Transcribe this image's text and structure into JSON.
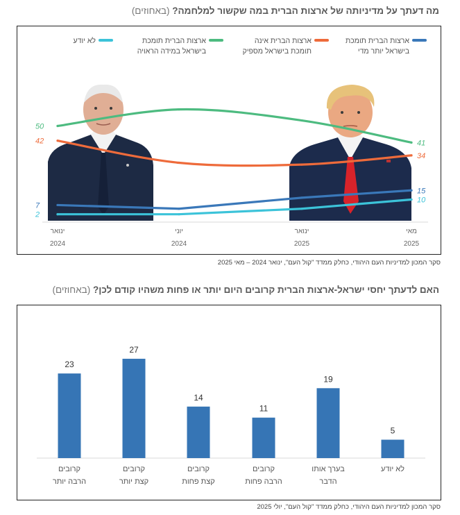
{
  "chart_data": [
    {
      "type": "line",
      "title": "מה דעתך על מדיניותה של ארצות הברית במה שקשור למלחמה?",
      "title_unit": "(באחוזים)",
      "x": [
        {
          "line1": "ינואר",
          "line2": "2024"
        },
        {
          "line1": "יוני",
          "line2": "2024"
        },
        {
          "line1": "ינואר",
          "line2": "2025"
        },
        {
          "line1": "מאי",
          "line2": "2025"
        }
      ],
      "series": [
        {
          "name": "ארצות הברית תומכת בישראל יותר מדי",
          "color": "#3a78b9",
          "start_label": "7",
          "end_label": "15",
          "values": [
            7,
            5,
            11,
            15
          ]
        },
        {
          "name": "ארצות הברית אינה תומכת בישראל מספיק",
          "color": "#ee6b3b",
          "start_label": "42",
          "end_label": "34",
          "values": [
            42,
            30,
            29,
            34
          ]
        },
        {
          "name": "ארצות הברית תומכת בישראל במידה הראויה",
          "color": "#4dbb80",
          "start_label": "50",
          "end_label": "41",
          "values": [
            50,
            59,
            53,
            41
          ]
        },
        {
          "name": "לא יודע",
          "color": "#3cc3d9",
          "start_label": "2",
          "end_label": "10",
          "values": [
            2,
            2,
            5,
            10
          ]
        }
      ],
      "legend_position": "top",
      "grid": false,
      "source": "סקר המכון למדיניות העם היהודי, כחלק ממדד \"קול העם\", ינואר 2024 – מאי 2025",
      "images": [
        "biden-portrait",
        "trump-portrait"
      ]
    },
    {
      "type": "bar",
      "title": "האם לדעתך יחסי ישראל-ארצות הברית קרובים היום יותר או פחות משהיו קודם לכן?",
      "title_unit": "(באחוזים)",
      "categories": [
        {
          "line1": "קרובים",
          "line2": "הרבה יותר"
        },
        {
          "line1": "קרובים",
          "line2": "קצת יותר"
        },
        {
          "line1": "קרובים",
          "line2": "קצת פחות"
        },
        {
          "line1": "קרובים",
          "line2": "הרבה פחות"
        },
        {
          "line1": "בערך אותו",
          "line2": "הדבר"
        },
        {
          "line1": "לא יודע",
          "line2": ""
        }
      ],
      "values": [
        23,
        27,
        14,
        11,
        19,
        5
      ],
      "bar_color": "#3675b5",
      "ylim": [
        0,
        30
      ],
      "grid": false,
      "source": "סקר המכון למדיניות העם היהודי, כחלק ממדד \"קול העם\", יולי 2025"
    }
  ]
}
